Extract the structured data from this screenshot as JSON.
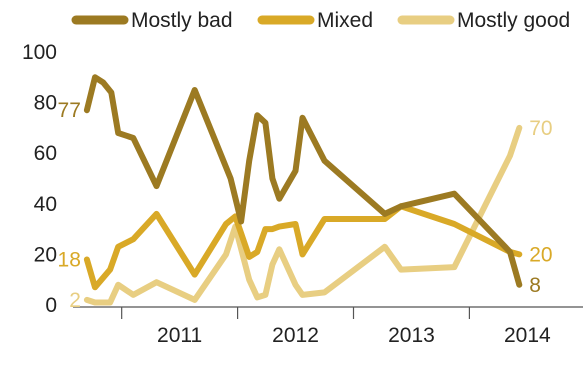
{
  "chart_data": {
    "type": "line",
    "title": "",
    "xlabel": "",
    "ylabel": "",
    "ylim": [
      0,
      100
    ],
    "xlim": [
      2010.58,
      2014.98
    ],
    "y_ticks": [
      "0",
      "20",
      "40",
      "60",
      "80",
      "100"
    ],
    "x_tick_labels": [
      "2011",
      "2012",
      "2013",
      "2014"
    ],
    "legend_position": "top",
    "grid": false,
    "series": [
      {
        "name": "Mostly bad",
        "color": "#9C7A22",
        "x": [
          2010.7,
          2010.77,
          2010.84,
          2010.91,
          2010.97,
          2011.1,
          2011.3,
          2011.63,
          2011.94,
          2012.03,
          2012.1,
          2012.17,
          2012.24,
          2012.3,
          2012.36,
          2012.5,
          2012.56,
          2012.75,
          2013.27,
          2013.41,
          2013.87,
          2014.35,
          2014.43
        ],
        "values": [
          77,
          90,
          88,
          84,
          68,
          66,
          47,
          85,
          50,
          33,
          57,
          75,
          72,
          50,
          42,
          53,
          74,
          57,
          36,
          39,
          44,
          21,
          8
        ],
        "start_label": "77",
        "end_label": "8"
      },
      {
        "name": "Mixed",
        "color": "#D9A927",
        "x": [
          2010.7,
          2010.77,
          2010.9,
          2010.97,
          2011.1,
          2011.3,
          2011.63,
          2011.9,
          2011.98,
          2012.1,
          2012.17,
          2012.24,
          2012.3,
          2012.36,
          2012.5,
          2012.56,
          2012.75,
          2013.27,
          2013.41,
          2013.87,
          2014.35,
          2014.43
        ],
        "values": [
          18,
          7,
          14,
          23,
          26,
          36,
          12,
          32,
          35,
          19,
          21,
          30,
          30,
          31,
          32,
          20,
          34,
          34,
          39,
          32,
          21,
          20
        ],
        "start_label": "18",
        "end_label": "20"
      },
      {
        "name": "Mostly good",
        "color": "#E8CE82",
        "x": [
          2010.7,
          2010.77,
          2010.9,
          2010.97,
          2011.1,
          2011.3,
          2011.63,
          2011.9,
          2011.98,
          2012.1,
          2012.17,
          2012.24,
          2012.3,
          2012.36,
          2012.5,
          2012.56,
          2012.75,
          2013.27,
          2013.41,
          2013.87,
          2014.35,
          2014.43
        ],
        "values": [
          2,
          1,
          1,
          8,
          4,
          9,
          2,
          20,
          31,
          10,
          3,
          4,
          16,
          22,
          8,
          4,
          5,
          23,
          14,
          15,
          59,
          70
        ],
        "start_label": "2",
        "end_label": "70"
      }
    ]
  }
}
